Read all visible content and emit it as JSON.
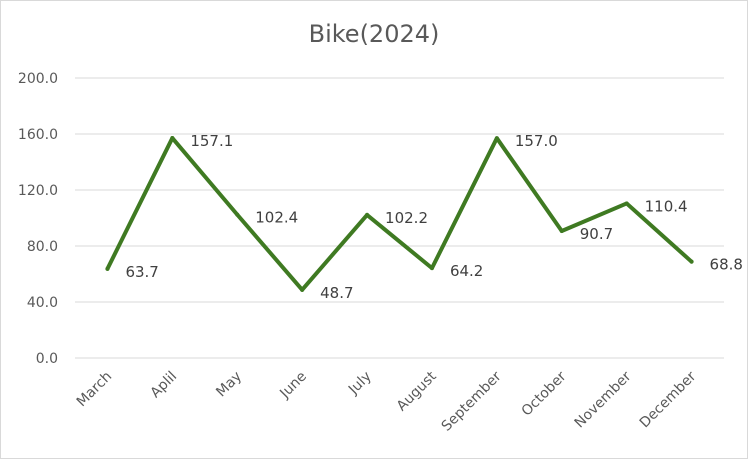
{
  "chart_data": {
    "type": "line",
    "title": "Bike(2024)",
    "xlabel": "",
    "ylabel": "",
    "categories": [
      "March",
      "Aplil",
      "May",
      "June",
      "July",
      "August",
      "September",
      "October",
      "November",
      "December"
    ],
    "series": [
      {
        "values": [
          63.7,
          157.1,
          102.4,
          48.7,
          102.2,
          64.2,
          157.0,
          90.7,
          110.4,
          68.8
        ],
        "data_labels": [
          "63.7",
          "157.1",
          "102.4",
          "48.7",
          "102.2",
          "64.2",
          "157.0",
          "90.7",
          "110.4",
          "68.8"
        ]
      }
    ],
    "y_ticks": [
      "0.0",
      "40.0",
      "80.0",
      "120.0",
      "160.0",
      "200.0"
    ],
    "ylim": [
      0,
      200
    ],
    "grid": true,
    "legend": "none",
    "colors": {
      "line": "#3f7a22",
      "grid": "#d9d9d9",
      "text": "#595959"
    }
  }
}
